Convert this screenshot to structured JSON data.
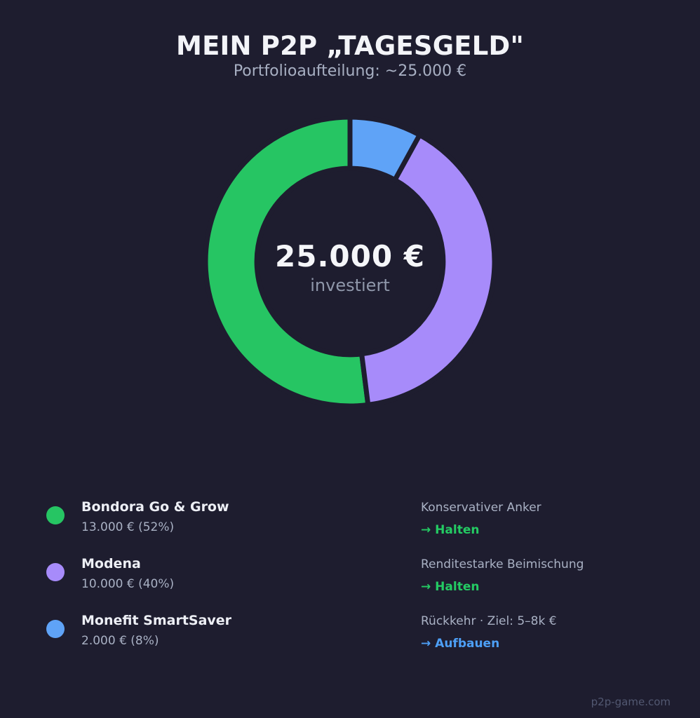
{
  "page": {
    "background": "#1e1d2f",
    "footer": "p2p-game.com"
  },
  "header": {
    "title": "MEIN P2P „TAGESGELD\"",
    "subtitle": "Portfolioaufteilung: ~25.000 €"
  },
  "chart_data": {
    "type": "pie",
    "variant": "donut",
    "title": "MEIN P2P „TAGESGELD\"",
    "center_label": "25.000 €",
    "center_sublabel": "investiert",
    "total_value_eur": 25000,
    "start_angle_deg": 0,
    "direction": "counterclockwise",
    "inner_radius_ratio": 0.645,
    "gap_color": "#1e1d2f",
    "legend_position": "bottom",
    "slices": [
      {
        "label": "Bondora Go & Grow",
        "value": 13000,
        "pct": 52,
        "color": "#26c563"
      },
      {
        "label": "Modena",
        "value": 10000,
        "pct": 40,
        "color": "#a78bfa"
      },
      {
        "label": "Monefit SmartSaver",
        "value": 2000,
        "pct": 8,
        "color": "#5fa3f7"
      }
    ]
  },
  "legend": {
    "items": [
      {
        "name": "Bondora Go & Grow",
        "amount": "13.000 € (52%)",
        "color": "#26c563",
        "note": "Konservativer Anker",
        "action": "→ Halten",
        "action_color": "#24cb63"
      },
      {
        "name": "Modena",
        "amount": "10.000 € (40%)",
        "color": "#a78bfa",
        "note": "Renditestarke Beimischung",
        "action": "→ Halten",
        "action_color": "#24cb63"
      },
      {
        "name": "Monefit SmartSaver",
        "amount": "2.000 € (8%)",
        "color": "#5fa3f7",
        "note": "Rückkehr · Ziel: 5–8k €",
        "action": "→ Aufbauen",
        "action_color": "#4d9ff6"
      }
    ]
  }
}
